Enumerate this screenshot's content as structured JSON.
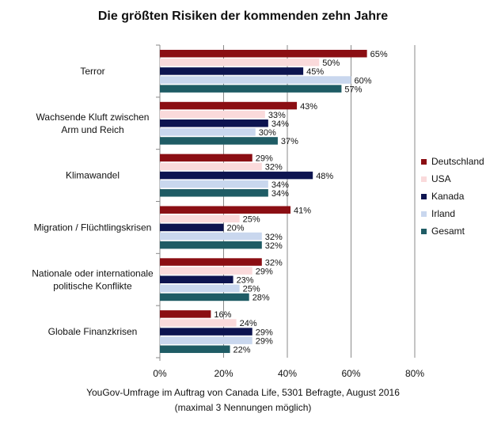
{
  "chart_data": {
    "type": "bar",
    "orientation": "horizontal",
    "title": "Die größten Risiken der kommenden zehn Jahre",
    "categories": [
      "Terror",
      "Wachsende Kluft zwischen Arm und Reich",
      "Klimawandel",
      "Migration / Flüchtlingskrisen",
      "Nationale oder internationale politische Konflikte",
      "Globale Finanzkrisen"
    ],
    "series": [
      {
        "name": "Deutschland",
        "color": "#8B0E13",
        "values": [
          65,
          43,
          29,
          41,
          32,
          16
        ]
      },
      {
        "name": "USA",
        "color": "#FADADB",
        "values": [
          50,
          33,
          32,
          25,
          29,
          24
        ]
      },
      {
        "name": "Kanada",
        "color": "#0D1450",
        "values": [
          45,
          34,
          48,
          20,
          23,
          29
        ]
      },
      {
        "name": "Irland",
        "color": "#C9D7EE",
        "values": [
          60,
          30,
          34,
          32,
          25,
          29
        ]
      },
      {
        "name": "Gesamt",
        "color": "#1F5C65",
        "values": [
          57,
          37,
          34,
          32,
          28,
          22
        ]
      }
    ],
    "xlim": [
      0,
      80
    ],
    "xticks": [
      0,
      20,
      40,
      60,
      80
    ],
    "tick_suffix": "%",
    "grid": true,
    "legend_position": "right",
    "source": "YouGov-Umfrage im Auftrag von Canada Life, 5301 Befragte, August 2016",
    "note": "(maximal 3 Nennungen möglich)"
  }
}
